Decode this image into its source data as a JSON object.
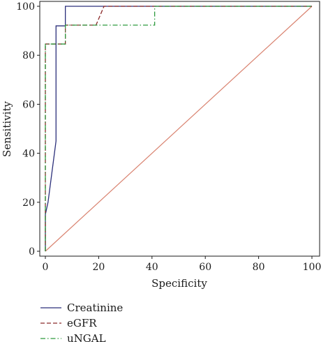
{
  "chart_data": {
    "type": "line",
    "xlabel": "Specificity",
    "ylabel": "Sensitivity",
    "xlim": [
      0,
      100
    ],
    "ylim": [
      0,
      100
    ],
    "x_ticks": [
      0,
      20,
      40,
      60,
      80,
      100
    ],
    "y_ticks": [
      0,
      20,
      40,
      60,
      80,
      100
    ],
    "grid": false,
    "legend_position": "bottom-left",
    "reference_line": {
      "points": [
        [
          0,
          0
        ],
        [
          100,
          100
        ]
      ],
      "color": "#d9826f"
    },
    "series": [
      {
        "name": "Creatinine",
        "color": "#2b2f7a",
        "dash": "solid",
        "points": [
          [
            0,
            0
          ],
          [
            0,
            15
          ],
          [
            1,
            20
          ],
          [
            4,
            45
          ],
          [
            4,
            92
          ],
          [
            7.5,
            92
          ],
          [
            7.5,
            100
          ],
          [
            100,
            100
          ]
        ]
      },
      {
        "name": "eGFR",
        "color": "#8b2a2a",
        "dash": "dashed",
        "points": [
          [
            0,
            0
          ],
          [
            0,
            84.6
          ],
          [
            7.5,
            84.6
          ],
          [
            7.5,
            92.3
          ],
          [
            19,
            92.3
          ],
          [
            22,
            100
          ],
          [
            100,
            100
          ]
        ]
      },
      {
        "name": "uNGAL",
        "color": "#2e9a3e",
        "dash": "dashdot",
        "points": [
          [
            0,
            0
          ],
          [
            0,
            84.6
          ],
          [
            7.5,
            84.6
          ],
          [
            7.5,
            92.3
          ],
          [
            41,
            92.3
          ],
          [
            41,
            100
          ],
          [
            100,
            100
          ]
        ]
      }
    ]
  }
}
